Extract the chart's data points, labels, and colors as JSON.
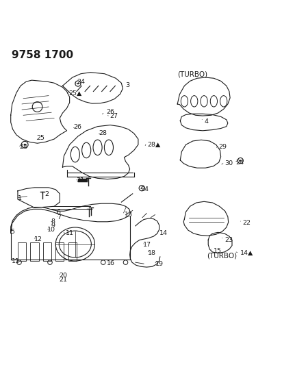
{
  "title": "9758 1700",
  "bg_color": "#ffffff",
  "line_color": "#1a1a1a",
  "text_color": "#1a1a1a",
  "title_fontsize": 11,
  "label_fontsize": 7.5,
  "turbo_label1": "(TURBO)",
  "turbo_label2": "(TURBO)"
}
